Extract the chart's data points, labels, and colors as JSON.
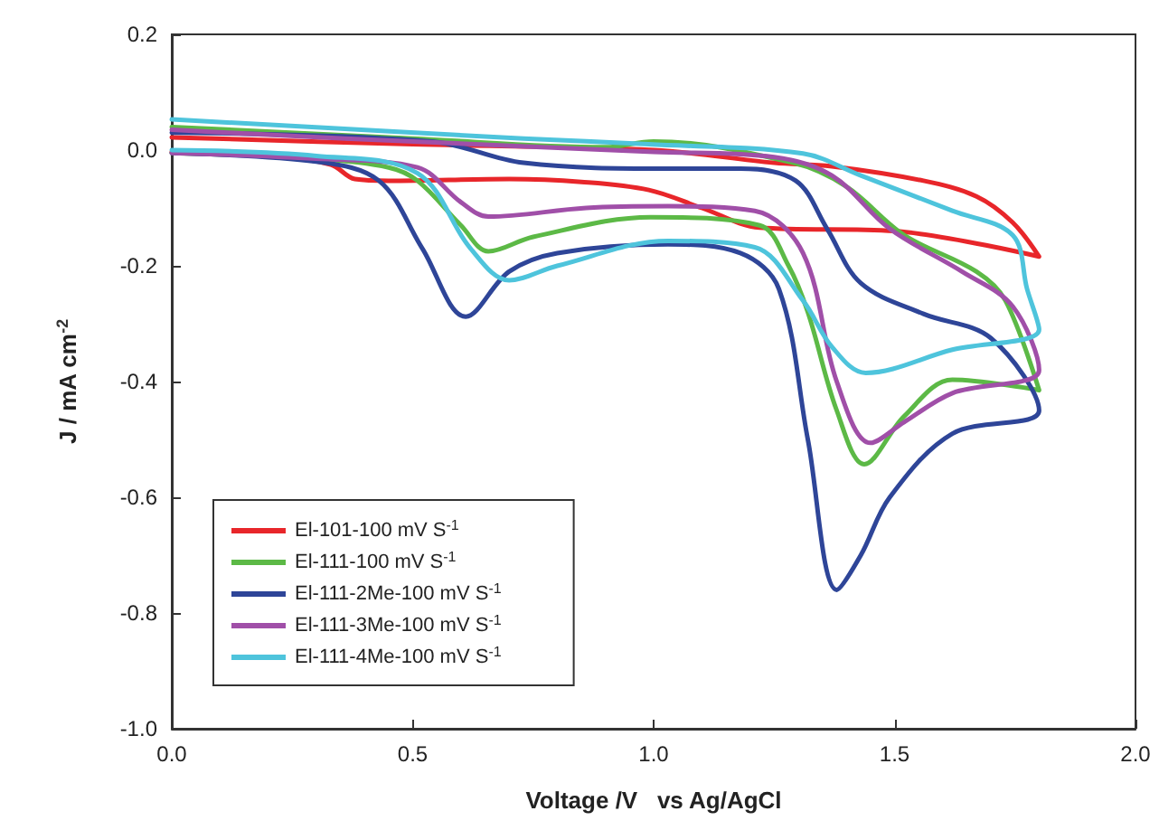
{
  "chart_data": {
    "type": "line",
    "xlabel": "Voltage /V   vs Ag/AgCl",
    "ylabel": "J / mA cm$^{-2}$",
    "xlim": [
      0,
      2
    ],
    "xticks": [
      {
        "value": 0,
        "label": "0.0"
      },
      {
        "value": 0.5,
        "label": "0.5"
      },
      {
        "value": 1,
        "label": "1.0"
      },
      {
        "value": 1.5,
        "label": "1.5"
      },
      {
        "value": 2,
        "label": "2.0"
      }
    ],
    "ylim": [
      -1,
      0.2
    ],
    "yticks": [
      {
        "value": -1,
        "label": "-1.0"
      },
      {
        "value": -0.8,
        "label": "-0.8"
      },
      {
        "value": -0.6,
        "label": "-0.6"
      },
      {
        "value": -0.4,
        "label": "-0.4"
      },
      {
        "value": -0.2,
        "label": "-0.2"
      },
      {
        "value": 0,
        "label": "0.0"
      },
      {
        "value": 0.2,
        "label": "0.2"
      }
    ],
    "grid": false,
    "legend": "bottom left",
    "marker": "none",
    "line_style": "solid",
    "series": [
      {
        "name": "El-101-100 mV S$^{-1}$",
        "color": "#e8262a",
        "x": [
          0,
          0.2,
          0.33,
          0.38,
          0.45,
          0.7,
          0.85,
          0.99,
          1.1,
          1.22,
          1.5,
          1.8,
          1.745,
          1.67,
          1.56,
          1.37,
          1.25,
          1.0,
          0.5,
          0
        ],
        "values": [
          -0.003,
          -0.01,
          -0.025,
          -0.05,
          -0.053,
          -0.05,
          -0.055,
          -0.069,
          -0.1,
          -0.134,
          -0.14,
          -0.184,
          -0.125,
          -0.08,
          -0.053,
          -0.028,
          -0.022,
          0.0,
          0.01,
          0.022
        ]
      },
      {
        "name": "El-111-100 mV S$^{-1}$",
        "color": "#5cb946",
        "x": [
          0,
          0.3,
          0.45,
          0.51,
          0.6,
          0.657,
          0.75,
          0.994,
          1.22,
          1.28,
          1.32,
          1.38,
          1.437,
          1.52,
          1.62,
          1.8,
          1.73,
          1.67,
          1.52,
          1.4,
          1.29,
          1.0,
          0.9,
          0.5,
          0
        ],
        "values": [
          -0.005,
          -0.015,
          -0.03,
          -0.053,
          -0.13,
          -0.175,
          -0.15,
          -0.116,
          -0.13,
          -0.2,
          -0.28,
          -0.45,
          -0.543,
          -0.46,
          -0.397,
          -0.415,
          -0.26,
          -0.21,
          -0.147,
          -0.063,
          -0.022,
          0.015,
          0.005,
          0.02,
          0.04
        ]
      },
      {
        "name": "El-111-2Me-100 mV S$^{-1}$",
        "color": "#2e4598",
        "x": [
          0,
          0.3,
          0.43,
          0.52,
          0.61,
          0.7,
          0.8,
          1.03,
          1.18,
          1.26,
          1.32,
          1.38,
          1.43,
          1.49,
          1.62,
          1.8,
          1.7,
          1.56,
          1.43,
          1.36,
          1.295,
          1.18,
          1.03,
          0.73,
          0.54,
          0
        ],
        "values": [
          -0.005,
          -0.02,
          -0.053,
          -0.17,
          -0.288,
          -0.21,
          -0.178,
          -0.163,
          -0.178,
          -0.24,
          -0.5,
          -0.76,
          -0.7,
          -0.6,
          -0.49,
          -0.45,
          -0.325,
          -0.283,
          -0.23,
          -0.136,
          -0.053,
          -0.032,
          -0.032,
          -0.022,
          0.015,
          0.03
        ]
      },
      {
        "name": "El-111-3Me-100 mV S$^{-1}$",
        "color": "#a04fa8",
        "x": [
          0,
          0.3,
          0.51,
          0.6,
          0.657,
          0.86,
          1.03,
          1.21,
          1.31,
          1.38,
          1.45,
          1.52,
          1.62,
          1.8,
          1.745,
          1.64,
          1.49,
          1.37,
          1.25,
          1.0,
          0.36,
          0
        ],
        "values": [
          -0.005,
          -0.015,
          -0.03,
          -0.09,
          -0.115,
          -0.1,
          -0.097,
          -0.105,
          -0.178,
          -0.4,
          -0.506,
          -0.47,
          -0.42,
          -0.38,
          -0.27,
          -0.21,
          -0.136,
          -0.044,
          -0.012,
          -0.003,
          0.02,
          0.035
        ]
      },
      {
        "name": "El-111-4Me-100 mV S$^{-1}$",
        "color": "#4ec4dc",
        "x": [
          0,
          0.3,
          0.51,
          0.62,
          0.7,
          0.8,
          1.03,
          1.21,
          1.31,
          1.37,
          1.44,
          1.62,
          1.8,
          1.775,
          1.745,
          1.62,
          1.43,
          1.31,
          0.99,
          0.73,
          0
        ],
        "values": [
          0.0,
          -0.01,
          -0.04,
          -0.17,
          -0.225,
          -0.2,
          -0.157,
          -0.168,
          -0.26,
          -0.34,
          -0.385,
          -0.345,
          -0.31,
          -0.24,
          -0.147,
          -0.105,
          -0.044,
          -0.006,
          0.01,
          0.02,
          0.053
        ]
      }
    ]
  }
}
